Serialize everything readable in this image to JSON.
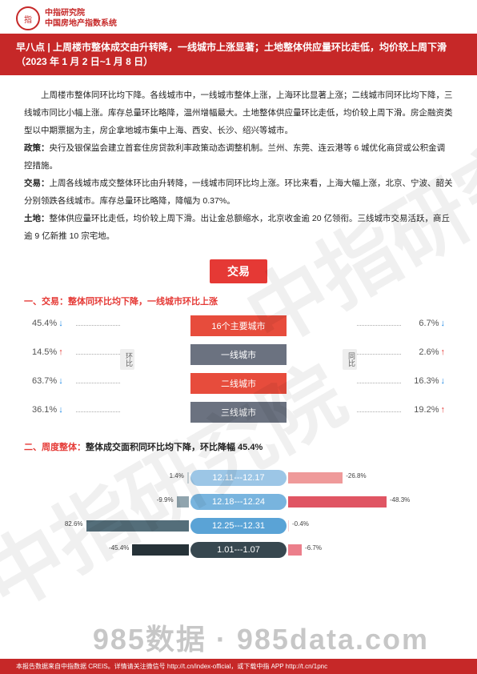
{
  "header": {
    "org_line1": "中指研究院",
    "org_line2": "中国房地产指数系统",
    "logo_text": "指"
  },
  "title": "早八点 | 上周楼市整体成交由升转降，一线城市上涨显著；土地整体供应量环比走低，均价较上周下滑（2023 年 1 月 2 日~1 月 8 日）",
  "summary": "上周楼市整体同环比均下降。各线城市中，一线城市整体上涨，上海环比显著上涨；二线城市同环比均下降，三线城市同比小幅上涨。库存总量环比略降，温州增幅最大。土地整体供应量环比走低，均价较上周下滑。房企融资类型以中期票据为主，房企拿地城市集中上海、西安、长沙、绍兴等城市。",
  "policy": {
    "label": "政策：",
    "text": "央行及银保监会建立首套住房贷款利率政策动态调整机制。兰州、东莞、连云港等 6 城优化商贷或公积金调控措施。"
  },
  "trade": {
    "label": "交易：",
    "text": "上周各线城市成交整体环比由升转降，一线城市同环比均上涨。环比来看，上海大幅上涨，北京、宁波、韶关分别领跌各线城市。库存总量环比略降，降幅为 0.37%。"
  },
  "land": {
    "label": "土地：",
    "text": "整体供应量环比走低，均价较上周下滑。出让金总额缩水，北京收金逾 20 亿领衔。三线城市交易活跃，商丘逾 9 亿新推 10 宗宅地。"
  },
  "section_tag": "交易",
  "heading1": {
    "prefix": "一、交易：",
    "rest": "整体同环比均下降，一线城市环比上涨"
  },
  "chart1": {
    "rows": [
      {
        "label": "16个主要城市",
        "pill_color": "#e74c3c",
        "left_val": "45.4%",
        "left_dir": "down",
        "right_val": "6.7%",
        "right_dir": "down"
      },
      {
        "label": "一线城市",
        "pill_color": "#6b7280",
        "left_val": "14.5%",
        "left_dir": "up",
        "right_val": "2.6%",
        "right_dir": "up"
      },
      {
        "label": "二线城市",
        "pill_color": "#e74c3c",
        "left_val": "63.7%",
        "left_dir": "down",
        "right_val": "16.3%",
        "right_dir": "down"
      },
      {
        "label": "三线城市",
        "pill_color": "#6b7280",
        "left_val": "36.1%",
        "left_dir": "down",
        "right_val": "19.2%",
        "right_dir": "up"
      }
    ],
    "left_tag": "环比",
    "right_tag": "同比"
  },
  "heading2": {
    "prefix": "二、周度整体：",
    "rest": "整体成交面积同环比均下降，环比降幅 45.4%"
  },
  "chart2": {
    "rows": [
      {
        "date": "12.11---12.17",
        "date_color": "#9cc6e6",
        "left_val": 1.4,
        "left_color": "#cfd8dc",
        "right_val": -26.8,
        "right_color": "#ef9a9a"
      },
      {
        "date": "12.18---12.24",
        "date_color": "#78b4de",
        "left_val": -9.9,
        "left_color": "#90a4ae",
        "right_val": -48.3,
        "right_color": "#e05563"
      },
      {
        "date": "12.25---12.31",
        "date_color": "#5aa3d6",
        "left_val": 82.6,
        "left_color": "#546e7a",
        "right_val": -0.4,
        "right_color": "#f8d0d4"
      },
      {
        "date": "1.01---1.07",
        "date_color": "#37474f",
        "left_val": -45.4,
        "left_color": "#263238",
        "right_val": -6.7,
        "right_color": "#ec7f8b"
      }
    ],
    "left_max": 90,
    "right_max": 55
  },
  "footer": "本报告数据来自中指数据 CREIS。详情请关注微信号 http://t.cn/index-official，或下载中指 APP http://t.cn/1pnc",
  "watermark_main": "中指研究院",
  "watermark_bottom": "985数据 · 985data.com"
}
